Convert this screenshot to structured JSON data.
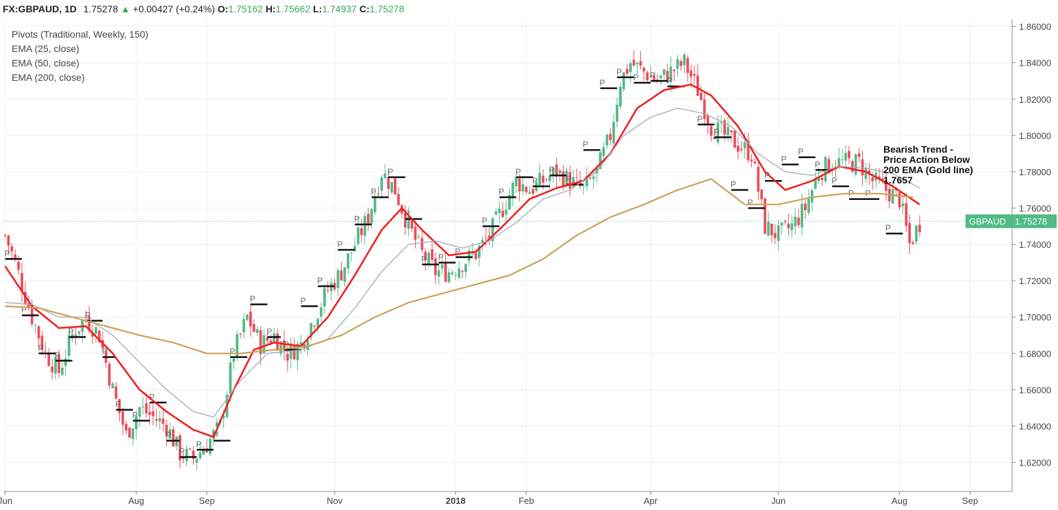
{
  "header": {
    "symbol": "FX:GBPAUD",
    "interval": "1D",
    "last": "1.75278",
    "change": "+0.00427 (+0.24%)",
    "open_label": "O:",
    "open": "1.75162",
    "high_label": "H:",
    "high": "1.75662",
    "low_label": "L:",
    "low": "1.74937",
    "close_label": "C:",
    "close": "1.75278"
  },
  "indicators": [
    "Pivots (Traditional, Weekly, 150)",
    "EMA (25, close)",
    "EMA (50, close)",
    "EMA (200, close)"
  ],
  "annotation": "Bearish Trend -\nPrice Action Below\n200 EMA (Gold line)\n1.7657",
  "price_tag": {
    "label": "GBPAUD",
    "value": "1.75278"
  },
  "colors": {
    "up": "#53b987",
    "down": "#eb4d5c",
    "ema25": "#f02020",
    "ema50": "#a0aab8",
    "ema200": "#c9a253",
    "pivot": "#111111",
    "tag": "#53b987"
  },
  "chart_data": {
    "type": "candlestick",
    "title": "",
    "xlabel": "",
    "ylabel": "",
    "ylim": [
      1.604,
      1.864
    ],
    "y_ticks": [
      "1.86000",
      "1.84000",
      "1.82000",
      "1.80000",
      "1.78000",
      "1.76000",
      "1.74000",
      "1.72000",
      "1.70000",
      "1.68000",
      "1.66000",
      "1.64000",
      "1.62000"
    ],
    "x_ticks": [
      {
        "label": "Jun",
        "bar": 0
      },
      {
        "label": "Aug",
        "bar": 39
      },
      {
        "label": "Sep",
        "bar": 60
      },
      {
        "label": "Nov",
        "bar": 98
      },
      {
        "label": "2018",
        "bar": 134
      },
      {
        "label": "Feb",
        "bar": 155
      },
      {
        "label": "Apr",
        "bar": 192
      },
      {
        "label": "Jun",
        "bar": 230
      },
      {
        "label": "Aug",
        "bar": 266
      },
      {
        "label": "Sep",
        "bar": 287
      }
    ],
    "bar_count": 300,
    "close_path": [
      [
        0,
        1.745
      ],
      [
        3,
        1.73
      ],
      [
        8,
        1.7
      ],
      [
        12,
        1.68
      ],
      [
        16,
        1.67
      ],
      [
        20,
        1.69
      ],
      [
        24,
        1.7
      ],
      [
        28,
        1.69
      ],
      [
        32,
        1.66
      ],
      [
        36,
        1.635
      ],
      [
        40,
        1.65
      ],
      [
        44,
        1.645
      ],
      [
        48,
        1.64
      ],
      [
        52,
        1.625
      ],
      [
        56,
        1.622
      ],
      [
        60,
        1.63
      ],
      [
        64,
        1.64
      ],
      [
        68,
        1.68
      ],
      [
        72,
        1.7
      ],
      [
        76,
        1.685
      ],
      [
        80,
        1.69
      ],
      [
        84,
        1.68
      ],
      [
        88,
        1.685
      ],
      [
        92,
        1.7
      ],
      [
        96,
        1.715
      ],
      [
        100,
        1.725
      ],
      [
        104,
        1.74
      ],
      [
        108,
        1.755
      ],
      [
        112,
        1.78
      ],
      [
        116,
        1.77
      ],
      [
        120,
        1.75
      ],
      [
        124,
        1.735
      ],
      [
        128,
        1.725
      ],
      [
        132,
        1.725
      ],
      [
        136,
        1.73
      ],
      [
        140,
        1.735
      ],
      [
        144,
        1.745
      ],
      [
        148,
        1.76
      ],
      [
        152,
        1.775
      ],
      [
        156,
        1.77
      ],
      [
        160,
        1.775
      ],
      [
        164,
        1.78
      ],
      [
        168,
        1.775
      ],
      [
        172,
        1.77
      ],
      [
        176,
        1.78
      ],
      [
        180,
        1.8
      ],
      [
        183,
        1.83
      ],
      [
        186,
        1.84
      ],
      [
        190,
        1.835
      ],
      [
        194,
        1.83
      ],
      [
        198,
        1.835
      ],
      [
        202,
        1.84
      ],
      [
        206,
        1.825
      ],
      [
        210,
        1.805
      ],
      [
        214,
        1.8
      ],
      [
        218,
        1.795
      ],
      [
        222,
        1.79
      ],
      [
        226,
        1.75
      ],
      [
        230,
        1.745
      ],
      [
        234,
        1.75
      ],
      [
        238,
        1.76
      ],
      [
        242,
        1.78
      ],
      [
        246,
        1.785
      ],
      [
        250,
        1.785
      ],
      [
        254,
        1.785
      ],
      [
        258,
        1.775
      ],
      [
        262,
        1.77
      ],
      [
        266,
        1.765
      ],
      [
        269,
        1.74
      ],
      [
        272,
        1.752
      ]
    ],
    "series": [
      {
        "name": "EMA (25, close)",
        "path": [
          [
            0,
            1.728
          ],
          [
            8,
            1.706
          ],
          [
            16,
            1.694
          ],
          [
            24,
            1.695
          ],
          [
            32,
            1.68
          ],
          [
            40,
            1.66
          ],
          [
            48,
            1.648
          ],
          [
            56,
            1.638
          ],
          [
            62,
            1.634
          ],
          [
            68,
            1.66
          ],
          [
            74,
            1.682
          ],
          [
            80,
            1.686
          ],
          [
            88,
            1.684
          ],
          [
            96,
            1.7
          ],
          [
            104,
            1.723
          ],
          [
            112,
            1.748
          ],
          [
            118,
            1.76
          ],
          [
            124,
            1.748
          ],
          [
            132,
            1.734
          ],
          [
            140,
            1.736
          ],
          [
            148,
            1.75
          ],
          [
            156,
            1.765
          ],
          [
            164,
            1.771
          ],
          [
            172,
            1.775
          ],
          [
            180,
            1.79
          ],
          [
            188,
            1.815
          ],
          [
            196,
            1.825
          ],
          [
            204,
            1.828
          ],
          [
            210,
            1.822
          ],
          [
            218,
            1.805
          ],
          [
            226,
            1.78
          ],
          [
            232,
            1.77
          ],
          [
            240,
            1.775
          ],
          [
            248,
            1.783
          ],
          [
            256,
            1.78
          ],
          [
            264,
            1.772
          ],
          [
            272,
            1.762
          ]
        ]
      },
      {
        "name": "EMA (50, close)",
        "path": [
          [
            0,
            1.708
          ],
          [
            8,
            1.707
          ],
          [
            16,
            1.7
          ],
          [
            24,
            1.7
          ],
          [
            32,
            1.69
          ],
          [
            40,
            1.675
          ],
          [
            48,
            1.66
          ],
          [
            56,
            1.648
          ],
          [
            62,
            1.645
          ],
          [
            70,
            1.665
          ],
          [
            78,
            1.68
          ],
          [
            88,
            1.682
          ],
          [
            96,
            1.688
          ],
          [
            104,
            1.705
          ],
          [
            112,
            1.725
          ],
          [
            120,
            1.74
          ],
          [
            128,
            1.742
          ],
          [
            136,
            1.738
          ],
          [
            144,
            1.742
          ],
          [
            152,
            1.752
          ],
          [
            160,
            1.765
          ],
          [
            168,
            1.77
          ],
          [
            176,
            1.78
          ],
          [
            184,
            1.8
          ],
          [
            192,
            1.81
          ],
          [
            200,
            1.815
          ],
          [
            208,
            1.812
          ],
          [
            216,
            1.805
          ],
          [
            224,
            1.79
          ],
          [
            232,
            1.78
          ],
          [
            240,
            1.778
          ],
          [
            248,
            1.783
          ],
          [
            256,
            1.782
          ],
          [
            264,
            1.779
          ],
          [
            272,
            1.771
          ]
        ]
      },
      {
        "name": "EMA (200, close)",
        "path": [
          [
            0,
            1.706
          ],
          [
            10,
            1.705
          ],
          [
            20,
            1.7
          ],
          [
            30,
            1.695
          ],
          [
            40,
            1.69
          ],
          [
            50,
            1.686
          ],
          [
            60,
            1.68
          ],
          [
            70,
            1.68
          ],
          [
            80,
            1.682
          ],
          [
            90,
            1.684
          ],
          [
            100,
            1.69
          ],
          [
            110,
            1.7
          ],
          [
            120,
            1.708
          ],
          [
            130,
            1.713
          ],
          [
            140,
            1.718
          ],
          [
            150,
            1.723
          ],
          [
            160,
            1.732
          ],
          [
            170,
            1.745
          ],
          [
            180,
            1.755
          ],
          [
            190,
            1.762
          ],
          [
            200,
            1.77
          ],
          [
            210,
            1.776
          ],
          [
            220,
            1.762
          ],
          [
            230,
            1.762
          ],
          [
            240,
            1.766
          ],
          [
            250,
            1.768
          ],
          [
            260,
            1.768
          ],
          [
            270,
            1.766
          ]
        ]
      }
    ],
    "pivots": [
      {
        "bar": 0,
        "bars": 5,
        "value": 1.732
      },
      {
        "bar": 5,
        "bars": 5,
        "value": 1.701
      },
      {
        "bar": 10,
        "bars": 5,
        "value": 1.68
      },
      {
        "bar": 15,
        "bars": 5,
        "value": 1.676
      },
      {
        "bar": 19,
        "bars": 5,
        "value": 1.689
      },
      {
        "bar": 24,
        "bars": 5,
        "value": 1.698
      },
      {
        "bar": 29,
        "bars": 4,
        "value": 1.678
      },
      {
        "bar": 33,
        "bars": 5,
        "value": 1.649
      },
      {
        "bar": 38,
        "bars": 5,
        "value": 1.643
      },
      {
        "bar": 43,
        "bars": 5,
        "value": 1.653
      },
      {
        "bar": 48,
        "bars": 4,
        "value": 1.632
      },
      {
        "bar": 52,
        "bars": 5,
        "value": 1.623
      },
      {
        "bar": 57,
        "bars": 5,
        "value": 1.627
      },
      {
        "bar": 62,
        "bars": 5,
        "value": 1.632
      },
      {
        "bar": 67,
        "bars": 5,
        "value": 1.678
      },
      {
        "bar": 73,
        "bars": 5,
        "value": 1.707
      },
      {
        "bar": 78,
        "bars": 4,
        "value": 1.689
      },
      {
        "bar": 83,
        "bars": 5,
        "value": 1.682
      },
      {
        "bar": 88,
        "bars": 5,
        "value": 1.706
      },
      {
        "bar": 93,
        "bars": 5,
        "value": 1.717
      },
      {
        "bar": 99,
        "bars": 5,
        "value": 1.737
      },
      {
        "bar": 104,
        "bars": 5,
        "value": 1.751
      },
      {
        "bar": 109,
        "bars": 5,
        "value": 1.766
      },
      {
        "bar": 114,
        "bars": 5,
        "value": 1.777
      },
      {
        "bar": 119,
        "bars": 5,
        "value": 1.754
      },
      {
        "bar": 124,
        "bars": 5,
        "value": 1.729
      },
      {
        "bar": 129,
        "bars": 5,
        "value": 1.73
      },
      {
        "bar": 134,
        "bars": 5,
        "value": 1.733
      },
      {
        "bar": 142,
        "bars": 5,
        "value": 1.75
      },
      {
        "bar": 147,
        "bars": 5,
        "value": 1.766
      },
      {
        "bar": 152,
        "bars": 5,
        "value": 1.777
      },
      {
        "bar": 157,
        "bars": 5,
        "value": 1.772
      },
      {
        "bar": 162,
        "bars": 5,
        "value": 1.778
      },
      {
        "bar": 167,
        "bars": 5,
        "value": 1.773
      },
      {
        "bar": 172,
        "bars": 5,
        "value": 1.792
      },
      {
        "bar": 177,
        "bars": 5,
        "value": 1.826
      },
      {
        "bar": 182,
        "bars": 5,
        "value": 1.832
      },
      {
        "bar": 187,
        "bars": 5,
        "value": 1.829
      },
      {
        "bar": 192,
        "bars": 5,
        "value": 1.83
      },
      {
        "bar": 197,
        "bars": 5,
        "value": 1.827
      },
      {
        "bar": 206,
        "bars": 5,
        "value": 1.806
      },
      {
        "bar": 211,
        "bars": 5,
        "value": 1.799
      },
      {
        "bar": 216,
        "bars": 5,
        "value": 1.77
      },
      {
        "bar": 221,
        "bars": 5,
        "value": 1.76
      },
      {
        "bar": 226,
        "bars": 5,
        "value": 1.775
      },
      {
        "bar": 231,
        "bars": 5,
        "value": 1.784
      },
      {
        "bar": 236,
        "bars": 5,
        "value": 1.788
      },
      {
        "bar": 241,
        "bars": 5,
        "value": 1.781
      },
      {
        "bar": 246,
        "bars": 5,
        "value": 1.772
      },
      {
        "bar": 251,
        "bars": 5,
        "value": 1.765
      },
      {
        "bar": 256,
        "bars": 4,
        "value": 1.765
      },
      {
        "bar": 262,
        "bars": 5,
        "value": 1.746
      }
    ],
    "pivot_label": "P",
    "last_price": 1.75278,
    "grid": true,
    "legend": "top-left"
  }
}
